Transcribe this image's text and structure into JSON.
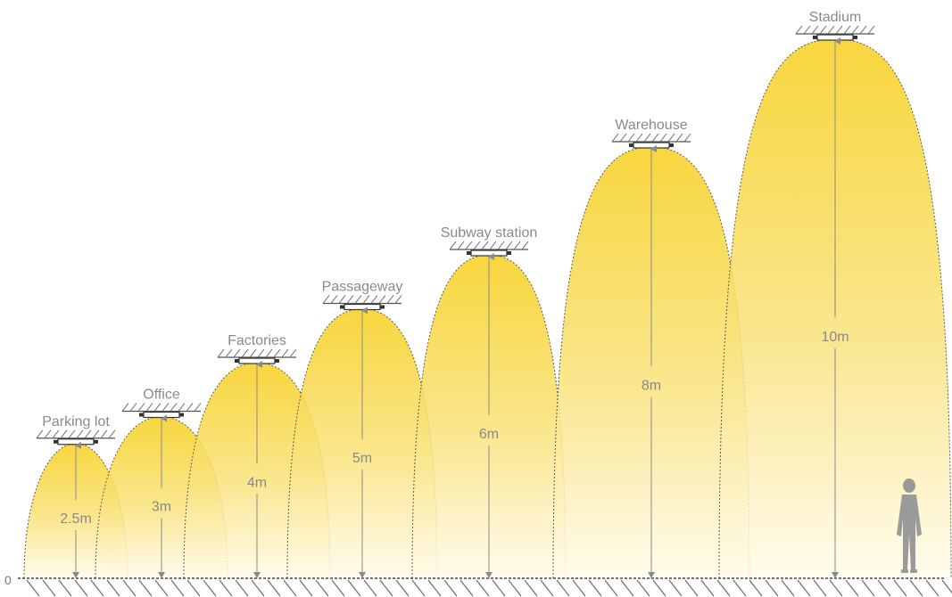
{
  "axis": {
    "zero_label": "0"
  },
  "colors": {
    "beam_core": "#f6cf1c",
    "beam_edge": "#fff6d2",
    "outline": "#5a5a5a",
    "label": "#8a8a8a",
    "person": "#9a9a9a"
  },
  "venues": [
    {
      "name": "Parking lot",
      "height_label": "2.5m",
      "height": 2.5
    },
    {
      "name": "Office",
      "height_label": "3m",
      "height": 3
    },
    {
      "name": "Factories",
      "height_label": "4m",
      "height": 4
    },
    {
      "name": "Passageway",
      "height_label": "5m",
      "height": 5
    },
    {
      "name": "Subway station",
      "height_label": "6m",
      "height": 6
    },
    {
      "name": "Warehouse",
      "height_label": "8m",
      "height": 8
    },
    {
      "name": "Stadium",
      "height_label": "10m",
      "height": 10
    }
  ],
  "figure": {
    "icon": "person-silhouette-icon"
  }
}
